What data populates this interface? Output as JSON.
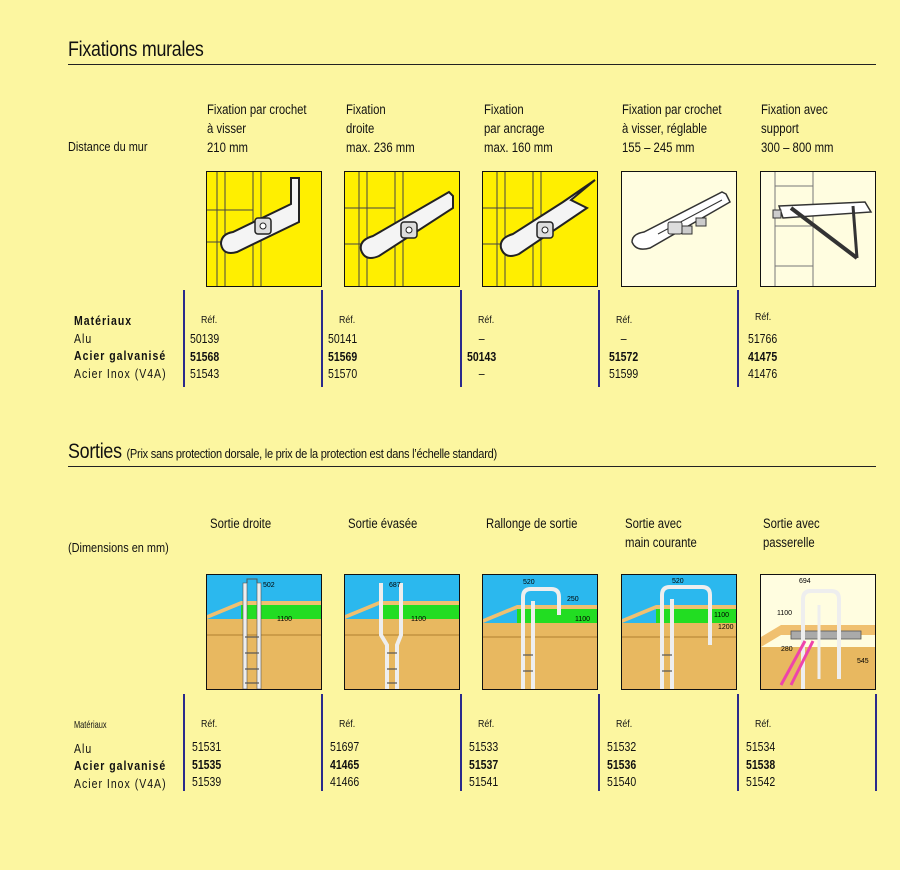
{
  "section1": {
    "title": "Fixations murales",
    "row_label": "Distance du mur",
    "columns": [
      {
        "head": [
          "Fixation par crochet",
          "à visser",
          "210 mm"
        ],
        "image_icon": "wall-hook-bracket-icon",
        "ref_label": "Réf.",
        "alu": "50139",
        "galv": "51568",
        "inox": "51543"
      },
      {
        "head": [
          "Fixation",
          "droite",
          "max. 236 mm"
        ],
        "image_icon": "straight-bracket-icon",
        "ref_label": "Réf.",
        "alu": "50141",
        "galv": "51569",
        "inox": "51570"
      },
      {
        "head": [
          "Fixation",
          "par ancrage",
          "max. 160 mm"
        ],
        "image_icon": "anchor-bracket-icon",
        "ref_label": "Réf.",
        "alu": "–",
        "galv": "50143",
        "inox": "–"
      },
      {
        "head": [
          "Fixation par crochet",
          "à visser, réglable",
          "155 – 245 mm"
        ],
        "image_icon": "adjustable-bracket-icon",
        "ref_label": "Réf.",
        "alu": "–",
        "galv": "51572",
        "inox": "51599"
      },
      {
        "head": [
          "Fixation avec",
          "support",
          "300 – 800 mm"
        ],
        "image_icon": "support-bracket-icon",
        "ref_label": "Réf.",
        "alu": "51766",
        "galv": "41475",
        "inox": "41476"
      }
    ],
    "materials": {
      "heading": "Matériaux",
      "alu": "Alu",
      "galv": "Acier galvanisé",
      "inox": "Acier Inox (V4A)"
    }
  },
  "section2": {
    "title": "Sorties",
    "subtitle": "(Prix sans protection dorsale, le prix de la protection est dans l’échelle standard)",
    "row_label": "(Dimensions en mm)",
    "columns": [
      {
        "head": [
          "Sortie droite"
        ],
        "image_icon": "straight-exit-icon",
        "dims": [
          "502",
          "1100"
        ],
        "ref_label": "Réf.",
        "alu": "51531",
        "galv": "51535",
        "inox": "51539"
      },
      {
        "head": [
          "Sortie évasée"
        ],
        "image_icon": "flared-exit-icon",
        "dims": [
          "687",
          "1100"
        ],
        "ref_label": "Réf.",
        "alu": "51697",
        "galv": "41465",
        "inox": "41466"
      },
      {
        "head": [
          "Rallonge de sortie"
        ],
        "image_icon": "exit-extension-icon",
        "dims": [
          "520",
          "250",
          "1100"
        ],
        "ref_label": "Réf.",
        "alu": "51533",
        "galv": "51537",
        "inox": "51541"
      },
      {
        "head": [
          "Sortie avec",
          "main courante"
        ],
        "image_icon": "exit-handrail-icon",
        "dims": [
          "520",
          "1100",
          "1200"
        ],
        "ref_label": "Réf.",
        "alu": "51532",
        "galv": "51536",
        "inox": "51540"
      },
      {
        "head": [
          "Sortie avec",
          "passerelle"
        ],
        "image_icon": "exit-walkway-icon",
        "dims": [
          "694",
          "1100",
          "280",
          "545"
        ],
        "ref_label": "Réf.",
        "alu": "51534",
        "galv": "51538",
        "inox": "51542"
      }
    ],
    "materials": {
      "heading": "Matériaux",
      "alu": "Alu",
      "galv": "Acier galvanisé",
      "inox": "Acier Inox (V4A)"
    }
  }
}
